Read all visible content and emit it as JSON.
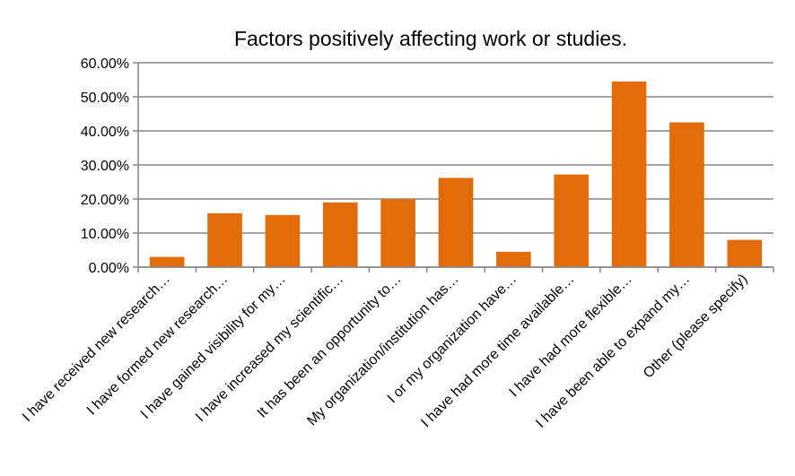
{
  "chart_data": {
    "type": "bar",
    "title": "Factors positively affecting work or studies.",
    "xlabel": "",
    "ylabel": "",
    "ylim": [
      0,
      0.6
    ],
    "y_ticks": [
      "0.00%",
      "10.00%",
      "20.00%",
      "30.00%",
      "40.00%",
      "50.00%",
      "60.00%"
    ],
    "y_tick_values": [
      0,
      0.1,
      0.2,
      0.3,
      0.4,
      0.5,
      0.6
    ],
    "grid": true,
    "legend": "none",
    "bar_color": "#E36C0A",
    "categories": [
      "I have received new research…",
      "I have formed new research…",
      "I have gained visibility for my…",
      "I have increased my scientific…",
      "It has been an opportunity to…",
      "My organization/institution has…",
      "I or my organization have…",
      "I have had more time available…",
      "I have had more flexible…",
      "I have been able to expand my…",
      "Other (please specify)"
    ],
    "values": [
      0.03,
      0.158,
      0.153,
      0.19,
      0.2,
      0.262,
      0.045,
      0.272,
      0.545,
      0.425,
      0.08
    ]
  }
}
